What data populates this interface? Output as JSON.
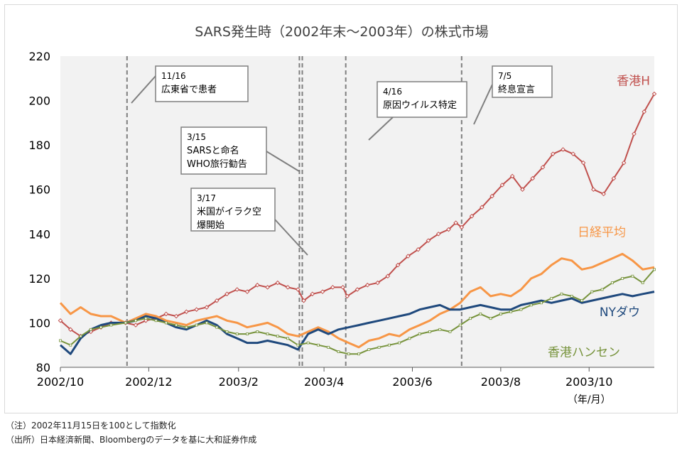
{
  "chart_data": {
    "type": "line",
    "title": "SARS発生時（2002年末～2003年）の株式市場",
    "ylim": [
      80,
      220
    ],
    "yticks": [
      80,
      100,
      120,
      140,
      160,
      180,
      200,
      220
    ],
    "x_range": [
      "2002-10-01",
      "2003-11-15"
    ],
    "x_ticks": [
      {
        "date": "2002-10-01",
        "label": "2002/10"
      },
      {
        "date": "2002-12-01",
        "label": "2002/12"
      },
      {
        "date": "2003-02-01",
        "label": "2003/2"
      },
      {
        "date": "2003-04-01",
        "label": "2003/4"
      },
      {
        "date": "2003-06-01",
        "label": "2003/6"
      },
      {
        "date": "2003-08-01",
        "label": "2003/8"
      },
      {
        "date": "2003-10-01",
        "label": "2003/10"
      }
    ],
    "x_unit": "（年/月）",
    "series": [
      {
        "name": "香港H",
        "color": "#c0504d",
        "marker": "diamond",
        "points": [
          [
            "2002-10-01",
            101
          ],
          [
            "2002-10-08",
            97
          ],
          [
            "2002-10-15",
            94
          ],
          [
            "2002-10-22",
            96
          ],
          [
            "2002-10-29",
            98
          ],
          [
            "2002-11-05",
            100
          ],
          [
            "2002-11-15",
            100
          ],
          [
            "2002-11-22",
            99
          ],
          [
            "2002-11-29",
            101
          ],
          [
            "2002-12-06",
            102
          ],
          [
            "2002-12-13",
            104
          ],
          [
            "2002-12-20",
            103
          ],
          [
            "2002-12-27",
            105
          ],
          [
            "2003-01-03",
            106
          ],
          [
            "2003-01-10",
            107
          ],
          [
            "2003-01-17",
            110
          ],
          [
            "2003-01-24",
            113
          ],
          [
            "2003-01-31",
            115
          ],
          [
            "2003-02-07",
            114
          ],
          [
            "2003-02-14",
            117
          ],
          [
            "2003-02-21",
            116
          ],
          [
            "2003-02-28",
            118
          ],
          [
            "2003-03-07",
            116
          ],
          [
            "2003-03-14",
            115
          ],
          [
            "2003-03-18",
            110
          ],
          [
            "2003-03-24",
            113
          ],
          [
            "2003-03-31",
            114
          ],
          [
            "2003-04-07",
            116
          ],
          [
            "2003-04-14",
            116
          ],
          [
            "2003-04-17",
            112
          ],
          [
            "2003-04-24",
            115
          ],
          [
            "2003-05-01",
            117
          ],
          [
            "2003-05-08",
            118
          ],
          [
            "2003-05-15",
            121
          ],
          [
            "2003-05-22",
            126
          ],
          [
            "2003-05-29",
            130
          ],
          [
            "2003-06-05",
            133
          ],
          [
            "2003-06-12",
            137
          ],
          [
            "2003-06-19",
            140
          ],
          [
            "2003-06-26",
            142
          ],
          [
            "2003-07-01",
            145
          ],
          [
            "2003-07-05",
            143
          ],
          [
            "2003-07-12",
            148
          ],
          [
            "2003-07-19",
            152
          ],
          [
            "2003-07-26",
            157
          ],
          [
            "2003-08-02",
            162
          ],
          [
            "2003-08-09",
            166
          ],
          [
            "2003-08-16",
            160
          ],
          [
            "2003-08-23",
            165
          ],
          [
            "2003-08-30",
            170
          ],
          [
            "2003-09-06",
            176
          ],
          [
            "2003-09-13",
            178
          ],
          [
            "2003-09-20",
            176
          ],
          [
            "2003-09-27",
            172
          ],
          [
            "2003-10-04",
            160
          ],
          [
            "2003-10-11",
            158
          ],
          [
            "2003-10-18",
            165
          ],
          [
            "2003-10-25",
            172
          ],
          [
            "2003-11-01",
            185
          ],
          [
            "2003-11-08",
            195
          ],
          [
            "2003-11-15",
            203
          ]
        ]
      },
      {
        "name": "日経平均",
        "color": "#f79646",
        "marker": "none",
        "points": [
          [
            "2002-10-01",
            109
          ],
          [
            "2002-10-08",
            104
          ],
          [
            "2002-10-15",
            107
          ],
          [
            "2002-10-22",
            104
          ],
          [
            "2002-10-29",
            103
          ],
          [
            "2002-11-05",
            103
          ],
          [
            "2002-11-15",
            100
          ],
          [
            "2002-11-22",
            102
          ],
          [
            "2002-11-29",
            104
          ],
          [
            "2002-12-06",
            103
          ],
          [
            "2002-12-13",
            101
          ],
          [
            "2002-12-20",
            100
          ],
          [
            "2002-12-27",
            99
          ],
          [
            "2003-01-03",
            101
          ],
          [
            "2003-01-10",
            102
          ],
          [
            "2003-01-17",
            103
          ],
          [
            "2003-01-24",
            101
          ],
          [
            "2003-01-31",
            100
          ],
          [
            "2003-02-07",
            98
          ],
          [
            "2003-02-14",
            99
          ],
          [
            "2003-02-21",
            100
          ],
          [
            "2003-02-28",
            98
          ],
          [
            "2003-03-07",
            95
          ],
          [
            "2003-03-14",
            94
          ],
          [
            "2003-03-21",
            96
          ],
          [
            "2003-03-28",
            98
          ],
          [
            "2003-04-04",
            96
          ],
          [
            "2003-04-11",
            93
          ],
          [
            "2003-04-18",
            91
          ],
          [
            "2003-04-25",
            89
          ],
          [
            "2003-05-02",
            92
          ],
          [
            "2003-05-09",
            93
          ],
          [
            "2003-05-16",
            95
          ],
          [
            "2003-05-23",
            94
          ],
          [
            "2003-05-30",
            97
          ],
          [
            "2003-06-06",
            99
          ],
          [
            "2003-06-13",
            101
          ],
          [
            "2003-06-20",
            104
          ],
          [
            "2003-06-27",
            106
          ],
          [
            "2003-07-04",
            109
          ],
          [
            "2003-07-11",
            114
          ],
          [
            "2003-07-18",
            116
          ],
          [
            "2003-07-25",
            112
          ],
          [
            "2003-08-01",
            113
          ],
          [
            "2003-08-08",
            112
          ],
          [
            "2003-08-15",
            115
          ],
          [
            "2003-08-22",
            120
          ],
          [
            "2003-08-29",
            122
          ],
          [
            "2003-09-05",
            126
          ],
          [
            "2003-09-12",
            129
          ],
          [
            "2003-09-19",
            128
          ],
          [
            "2003-09-26",
            124
          ],
          [
            "2003-10-03",
            125
          ],
          [
            "2003-10-10",
            127
          ],
          [
            "2003-10-17",
            129
          ],
          [
            "2003-10-24",
            131
          ],
          [
            "2003-10-31",
            128
          ],
          [
            "2003-11-07",
            124
          ],
          [
            "2003-11-15",
            125
          ]
        ]
      },
      {
        "name": "NYダウ",
        "color": "#1f497d",
        "marker": "none",
        "points": [
          [
            "2002-10-01",
            90
          ],
          [
            "2002-10-08",
            86
          ],
          [
            "2002-10-15",
            93
          ],
          [
            "2002-10-22",
            97
          ],
          [
            "2002-10-29",
            99
          ],
          [
            "2002-11-05",
            100
          ],
          [
            "2002-11-15",
            100
          ],
          [
            "2002-11-22",
            101
          ],
          [
            "2002-11-29",
            103
          ],
          [
            "2002-12-06",
            102
          ],
          [
            "2002-12-13",
            100
          ],
          [
            "2002-12-20",
            98
          ],
          [
            "2002-12-27",
            97
          ],
          [
            "2003-01-03",
            99
          ],
          [
            "2003-01-10",
            101
          ],
          [
            "2003-01-17",
            99
          ],
          [
            "2003-01-24",
            95
          ],
          [
            "2003-01-31",
            93
          ],
          [
            "2003-02-07",
            91
          ],
          [
            "2003-02-14",
            91
          ],
          [
            "2003-02-21",
            92
          ],
          [
            "2003-02-28",
            91
          ],
          [
            "2003-03-07",
            90
          ],
          [
            "2003-03-14",
            88
          ],
          [
            "2003-03-21",
            95
          ],
          [
            "2003-03-28",
            97
          ],
          [
            "2003-04-04",
            95
          ],
          [
            "2003-04-11",
            97
          ],
          [
            "2003-04-18",
            98
          ],
          [
            "2003-04-25",
            99
          ],
          [
            "2003-05-02",
            100
          ],
          [
            "2003-05-09",
            101
          ],
          [
            "2003-05-16",
            102
          ],
          [
            "2003-05-23",
            103
          ],
          [
            "2003-05-30",
            104
          ],
          [
            "2003-06-06",
            106
          ],
          [
            "2003-06-13",
            107
          ],
          [
            "2003-06-20",
            108
          ],
          [
            "2003-06-27",
            106
          ],
          [
            "2003-07-04",
            106
          ],
          [
            "2003-07-11",
            107
          ],
          [
            "2003-07-18",
            108
          ],
          [
            "2003-07-25",
            107
          ],
          [
            "2003-08-01",
            106
          ],
          [
            "2003-08-08",
            106
          ],
          [
            "2003-08-15",
            108
          ],
          [
            "2003-08-22",
            109
          ],
          [
            "2003-08-29",
            110
          ],
          [
            "2003-09-05",
            109
          ],
          [
            "2003-09-12",
            110
          ],
          [
            "2003-09-19",
            111
          ],
          [
            "2003-09-26",
            109
          ],
          [
            "2003-10-03",
            110
          ],
          [
            "2003-10-10",
            111
          ],
          [
            "2003-10-17",
            112
          ],
          [
            "2003-10-24",
            113
          ],
          [
            "2003-10-31",
            112
          ],
          [
            "2003-11-07",
            113
          ],
          [
            "2003-11-15",
            114
          ]
        ]
      },
      {
        "name": "香港ハンセン",
        "color": "#77933c",
        "marker": "small-square",
        "points": [
          [
            "2002-10-01",
            92
          ],
          [
            "2002-10-08",
            90
          ],
          [
            "2002-10-15",
            94
          ],
          [
            "2002-10-22",
            97
          ],
          [
            "2002-10-29",
            98
          ],
          [
            "2002-11-05",
            99
          ],
          [
            "2002-11-15",
            100
          ],
          [
            "2002-11-22",
            101
          ],
          [
            "2002-11-29",
            102
          ],
          [
            "2002-12-06",
            101
          ],
          [
            "2002-12-13",
            100
          ],
          [
            "2002-12-20",
            99
          ],
          [
            "2002-12-27",
            98
          ],
          [
            "2003-01-03",
            99
          ],
          [
            "2003-01-10",
            100
          ],
          [
            "2003-01-17",
            98
          ],
          [
            "2003-01-24",
            96
          ],
          [
            "2003-01-31",
            95
          ],
          [
            "2003-02-07",
            95
          ],
          [
            "2003-02-14",
            96
          ],
          [
            "2003-02-21",
            95
          ],
          [
            "2003-02-28",
            94
          ],
          [
            "2003-03-07",
            93
          ],
          [
            "2003-03-14",
            90
          ],
          [
            "2003-03-21",
            91
          ],
          [
            "2003-03-28",
            90
          ],
          [
            "2003-04-04",
            89
          ],
          [
            "2003-04-11",
            87
          ],
          [
            "2003-04-18",
            86
          ],
          [
            "2003-04-25",
            86
          ],
          [
            "2003-05-02",
            88
          ],
          [
            "2003-05-09",
            89
          ],
          [
            "2003-05-16",
            90
          ],
          [
            "2003-05-23",
            91
          ],
          [
            "2003-05-30",
            93
          ],
          [
            "2003-06-06",
            95
          ],
          [
            "2003-06-13",
            96
          ],
          [
            "2003-06-20",
            97
          ],
          [
            "2003-06-27",
            96
          ],
          [
            "2003-07-04",
            99
          ],
          [
            "2003-07-11",
            102
          ],
          [
            "2003-07-18",
            104
          ],
          [
            "2003-07-25",
            102
          ],
          [
            "2003-08-01",
            104
          ],
          [
            "2003-08-08",
            105
          ],
          [
            "2003-08-15",
            106
          ],
          [
            "2003-08-22",
            108
          ],
          [
            "2003-08-29",
            109
          ],
          [
            "2003-09-05",
            111
          ],
          [
            "2003-09-12",
            113
          ],
          [
            "2003-09-19",
            112
          ],
          [
            "2003-09-26",
            110
          ],
          [
            "2003-10-03",
            114
          ],
          [
            "2003-10-10",
            115
          ],
          [
            "2003-10-17",
            118
          ],
          [
            "2003-10-24",
            120
          ],
          [
            "2003-10-31",
            121
          ],
          [
            "2003-11-07",
            118
          ],
          [
            "2003-11-15",
            124
          ]
        ]
      }
    ],
    "events": [
      {
        "date": "2002-11-16",
        "label_lines": [
          "11/16",
          "広東省で患者"
        ]
      },
      {
        "date": "2003-03-15",
        "label_lines": [
          "3/15",
          "SARSと命名",
          "WHO旅行勧告"
        ]
      },
      {
        "date": "2003-03-17",
        "label_lines": [
          "3/17",
          "米国がイラク空",
          "爆開始"
        ]
      },
      {
        "date": "2003-04-16",
        "label_lines": [
          "4/16",
          "原因ウイルス特定"
        ]
      },
      {
        "date": "2003-07-05",
        "label_lines": [
          "7/5",
          "終息宣言"
        ]
      }
    ]
  },
  "notes": {
    "note1": "（注）2002年11月15日を100として指数化",
    "note2": "（出所）日本経済新聞、Bloombergのデータを基に大和証券作成"
  },
  "colors": {
    "plot_bg": "#f2f2f2",
    "event_line": "#7f7f7f",
    "axis_text": "#000000"
  }
}
